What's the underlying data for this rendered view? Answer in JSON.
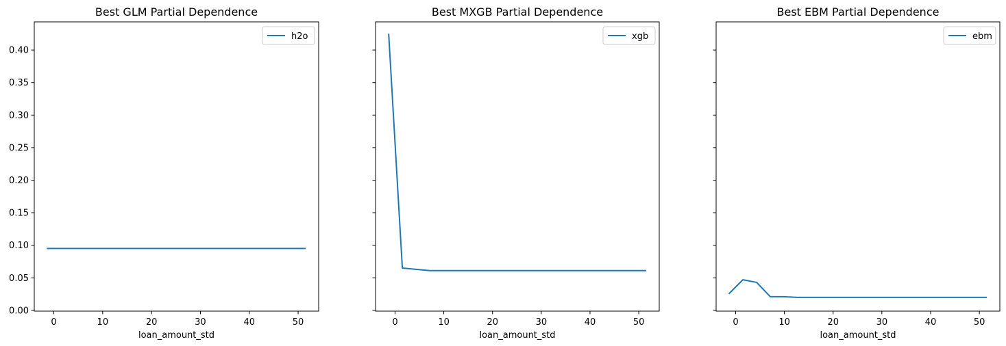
{
  "chart_data": [
    {
      "type": "line",
      "title": "Best GLM Partial Dependence",
      "xlabel": "loan_amount_std",
      "ylabel": "",
      "xlim": [
        -4.0,
        54.2
      ],
      "ylim": [
        -0.0012,
        0.4432
      ],
      "xticks": [
        0,
        10,
        20,
        30,
        40,
        50
      ],
      "yticks": [
        0.0,
        0.05,
        0.1,
        0.15,
        0.2,
        0.25,
        0.3,
        0.35,
        0.4
      ],
      "ytick_labels": [
        "0.00",
        "0.05",
        "0.10",
        "0.15",
        "0.20",
        "0.25",
        "0.30",
        "0.35",
        "0.40"
      ],
      "legend": "top-right",
      "grid": false,
      "series": [
        {
          "name": "h2o",
          "color": "#1f77b4",
          "x": [
            -1.3,
            51.4
          ],
          "y": [
            0.095,
            0.095
          ]
        }
      ]
    },
    {
      "type": "line",
      "title": "Best MXGB Partial Dependence",
      "xlabel": "loan_amount_std",
      "ylabel": "",
      "xlim": [
        -4.0,
        54.2
      ],
      "ylim": [
        -0.0012,
        0.4432
      ],
      "xticks": [
        0,
        10,
        20,
        30,
        40,
        50
      ],
      "yticks": [
        0.0,
        0.05,
        0.1,
        0.15,
        0.2,
        0.25,
        0.3,
        0.35,
        0.4
      ],
      "ytick_labels": [],
      "legend": "top-right",
      "grid": false,
      "series": [
        {
          "name": "xgb",
          "color": "#1f77b4",
          "x": [
            -1.3,
            1.5,
            4.3,
            7.1,
            9.8,
            12.6,
            51.4
          ],
          "y": [
            0.424,
            0.065,
            0.063,
            0.061,
            0.061,
            0.061,
            0.061
          ]
        }
      ]
    },
    {
      "type": "line",
      "title": "Best EBM Partial Dependence",
      "xlabel": "loan_amount_std",
      "ylabel": "",
      "xlim": [
        -4.0,
        54.2
      ],
      "ylim": [
        -0.0012,
        0.4432
      ],
      "xticks": [
        0,
        10,
        20,
        30,
        40,
        50
      ],
      "yticks": [
        0.0,
        0.05,
        0.1,
        0.15,
        0.2,
        0.25,
        0.3,
        0.35,
        0.4
      ],
      "ytick_labels": [],
      "legend": "top-right",
      "grid": false,
      "series": [
        {
          "name": "ebm",
          "color": "#1f77b4",
          "x": [
            -1.3,
            1.5,
            4.3,
            7.1,
            9.8,
            12.6,
            51.4
          ],
          "y": [
            0.026,
            0.047,
            0.043,
            0.021,
            0.021,
            0.02,
            0.02
          ]
        }
      ]
    }
  ]
}
